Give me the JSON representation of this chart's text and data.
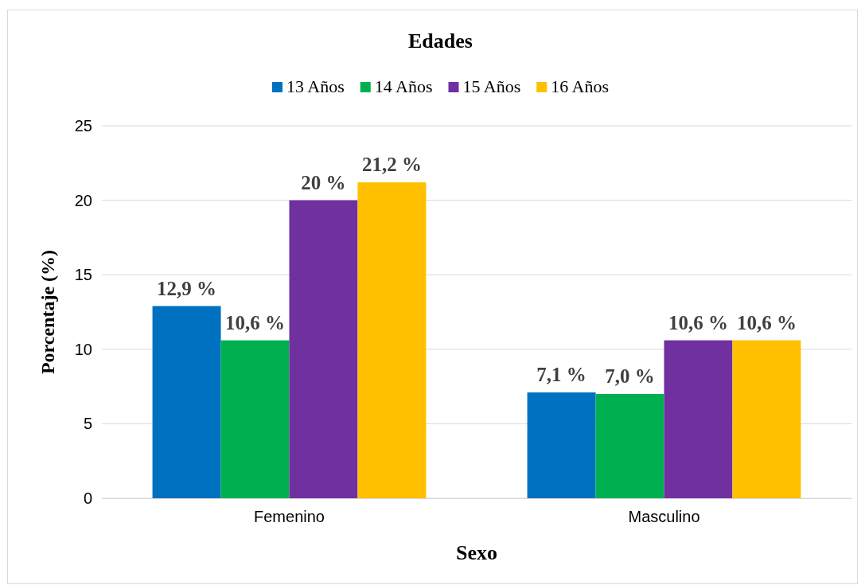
{
  "chart_data": {
    "type": "bar",
    "title": "Edades",
    "xlabel": "Sexo",
    "ylabel": "Porcentaje (%)",
    "categories": [
      "Femenino",
      "Masculino"
    ],
    "series": [
      {
        "name": "13 Años",
        "color": "#0070c0",
        "values": [
          12.9,
          7.1
        ],
        "value_labels": [
          "12,9 %",
          "7,1 %"
        ]
      },
      {
        "name": "14 Años",
        "color": "#00b050",
        "values": [
          10.6,
          7.0
        ],
        "value_labels": [
          "10,6 %",
          "7,0 %"
        ]
      },
      {
        "name": "15 Años",
        "color": "#7030a0",
        "values": [
          20,
          10.6
        ],
        "value_labels": [
          "20 %",
          "10,6 %"
        ]
      },
      {
        "name": "16 Años",
        "color": "#ffc000",
        "values": [
          21.2,
          10.6
        ],
        "value_labels": [
          "21,2 %",
          "10,6 %"
        ]
      }
    ],
    "ylim": [
      0,
      25
    ],
    "yticks": [
      0,
      5,
      10,
      15,
      20,
      25
    ],
    "grid": "y",
    "legend": "top"
  }
}
